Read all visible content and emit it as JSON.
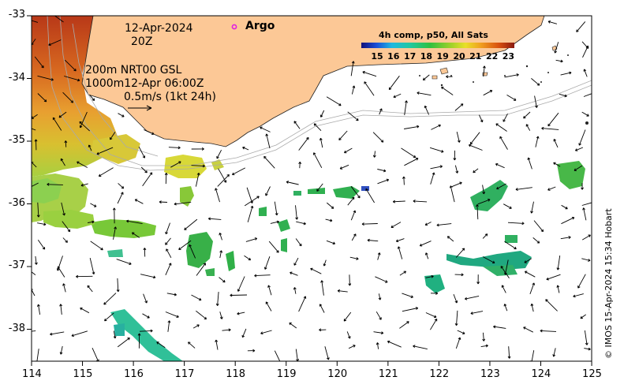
{
  "map": {
    "date": "12-Apr-2024",
    "time": "20Z",
    "current_line1": "200m  NRT00 GSL",
    "current_line2": "1000m12-Apr 06:00Z",
    "scale_label": "0.5m/s (1kt 24h)",
    "argo_label": "Argo",
    "colorbar_title": "4h comp, p50, All Sats",
    "colorbar_ticks": [
      "15",
      "16",
      "17",
      "18",
      "19",
      "20",
      "21",
      "22",
      "23"
    ],
    "x_ticks": [
      "114",
      "115",
      "116",
      "117",
      "118",
      "119",
      "120",
      "121",
      "122",
      "123",
      "124",
      "125"
    ],
    "y_ticks": [
      "-33",
      "-34",
      "-35",
      "-36",
      "-37",
      "-38"
    ],
    "credit": "© IMOS 15-Apr-2024 15:34 Hobart",
    "land_color": "#fcc896",
    "argo_color": "#e020e0"
  }
}
